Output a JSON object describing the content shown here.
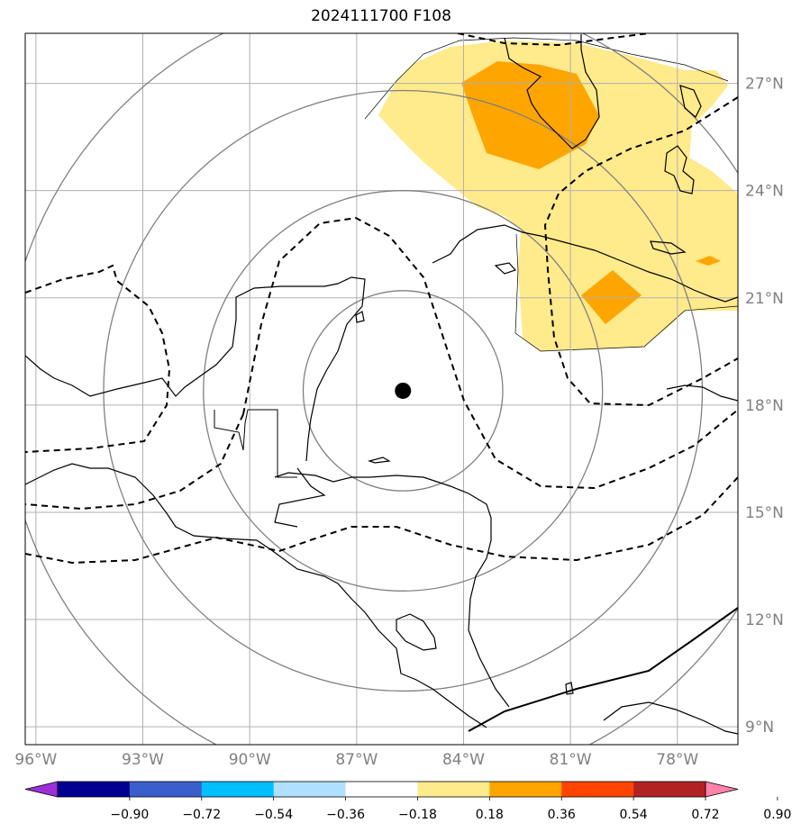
{
  "title": "2024111700 F108",
  "axes": {
    "lon_labels": [
      "96°W",
      "93°W",
      "90°W",
      "87°W",
      "84°W",
      "81°W",
      "78°W"
    ],
    "lon_values": [
      -96,
      -93,
      -90,
      -87,
      -84,
      -81,
      -78
    ],
    "lat_labels": [
      "9°N",
      "12°N",
      "15°N",
      "18°N",
      "21°N",
      "24°N",
      "27°N"
    ],
    "lat_values": [
      9,
      12,
      15,
      18,
      21,
      24,
      27
    ],
    "lon_range": [
      -96.3,
      -76.3
    ],
    "lat_range": [
      8.5,
      28.4
    ],
    "grid": true
  },
  "storm_center": {
    "lon": -85.7,
    "lat": 18.4
  },
  "range_rings_deg": [
    2.8,
    5.6,
    8.4,
    11.2
  ],
  "colorbar": {
    "tick_labels": [
      "−0.90",
      "−0.72",
      "−0.54",
      "−0.36",
      "−0.18",
      "0.18",
      "0.36",
      "0.54",
      "0.72",
      "0.90"
    ],
    "colors": [
      "#9b30d9",
      "#000090",
      "#3a5fcd",
      "#00bfff",
      "#b0e0ff",
      "#ffffff",
      "#ffea8c",
      "#ffa500",
      "#ff4500",
      "#b22222",
      "#ff82ab"
    ],
    "extend": "both"
  }
}
